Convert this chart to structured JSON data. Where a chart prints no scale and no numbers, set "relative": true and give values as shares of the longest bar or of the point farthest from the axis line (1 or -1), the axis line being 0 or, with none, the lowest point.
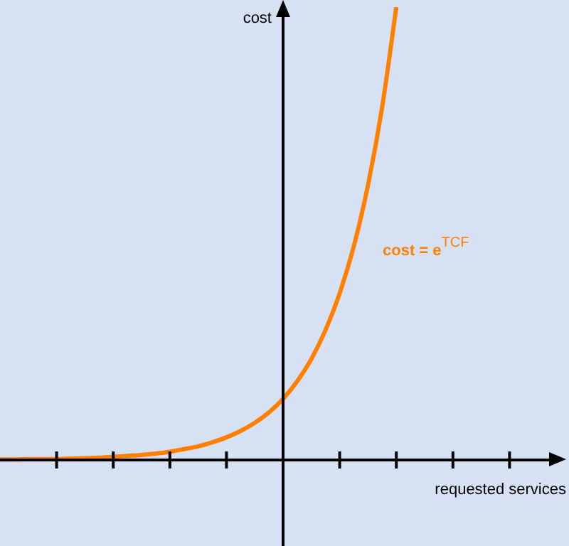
{
  "chart_data": {
    "type": "line",
    "relative": true,
    "xlabel": "requested services",
    "ylabel": "cost",
    "annotations": [
      "cost = e$^{TCF}$"
    ],
    "categories": [
      null,
      null,
      null,
      null,
      null,
      null,
      null,
      null,
      null,
      null,
      null,
      null,
      null,
      null,
      null,
      null,
      null,
      null,
      null,
      null,
      null,
      null,
      null,
      null,
      null,
      null,
      null,
      null,
      null,
      null,
      null,
      null,
      null,
      null,
      null,
      null,
      null,
      null,
      null,
      null,
      null
    ],
    "series": [
      {
        "color": "#ff8000",
        "values": [
          0.001,
          0.001,
          0.002,
          0.002,
          0.002,
          0.003,
          0.004,
          0.005,
          0.007,
          0.009,
          0.011,
          0.014,
          0.018,
          0.024,
          0.03,
          0.039,
          0.05,
          0.064,
          0.082,
          0.105,
          0.135,
          0.174,
          0.223,
          0.287,
          0.368,
          0.472,
          0.607,
          0.779,
          1,
          null,
          null,
          null,
          null,
          null,
          null,
          null,
          null,
          null,
          null,
          null,
          null
        ]
      }
    ],
    "grid": false,
    "legend": false,
    "marker": "none",
    "line_style": "solid"
  }
}
